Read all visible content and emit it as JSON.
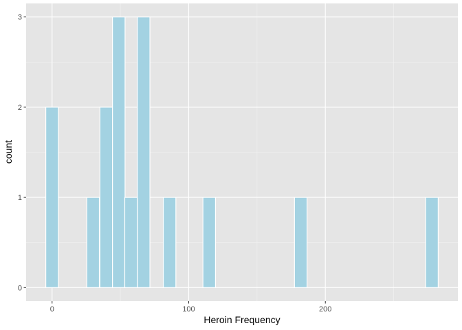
{
  "chart_data": {
    "type": "bar",
    "xlabel": "Heroin Frequency",
    "ylabel": "count",
    "xlim": [
      -19,
      297
    ],
    "ylim": [
      -0.15,
      3.15
    ],
    "x_ticks": [
      0,
      100,
      200
    ],
    "y_ticks": [
      0,
      1,
      2,
      3
    ],
    "bins": [
      {
        "x": 0,
        "count": 2
      },
      {
        "x": 30,
        "count": 1
      },
      {
        "x": 39.6,
        "count": 2
      },
      {
        "x": 48.8,
        "count": 3
      },
      {
        "x": 57.8,
        "count": 1
      },
      {
        "x": 67,
        "count": 3
      },
      {
        "x": 86,
        "count": 1
      },
      {
        "x": 115,
        "count": 1
      },
      {
        "x": 182,
        "count": 1
      },
      {
        "x": 278,
        "count": 1
      }
    ],
    "bin_width": 9.2,
    "grid": true,
    "colors": {
      "panel": "#e5e5e5",
      "grid_major": "#ffffff",
      "grid_minor": "#f2f2f2",
      "bar_fill": "#a3d2e2",
      "bar_outline": "#ffffff"
    }
  }
}
